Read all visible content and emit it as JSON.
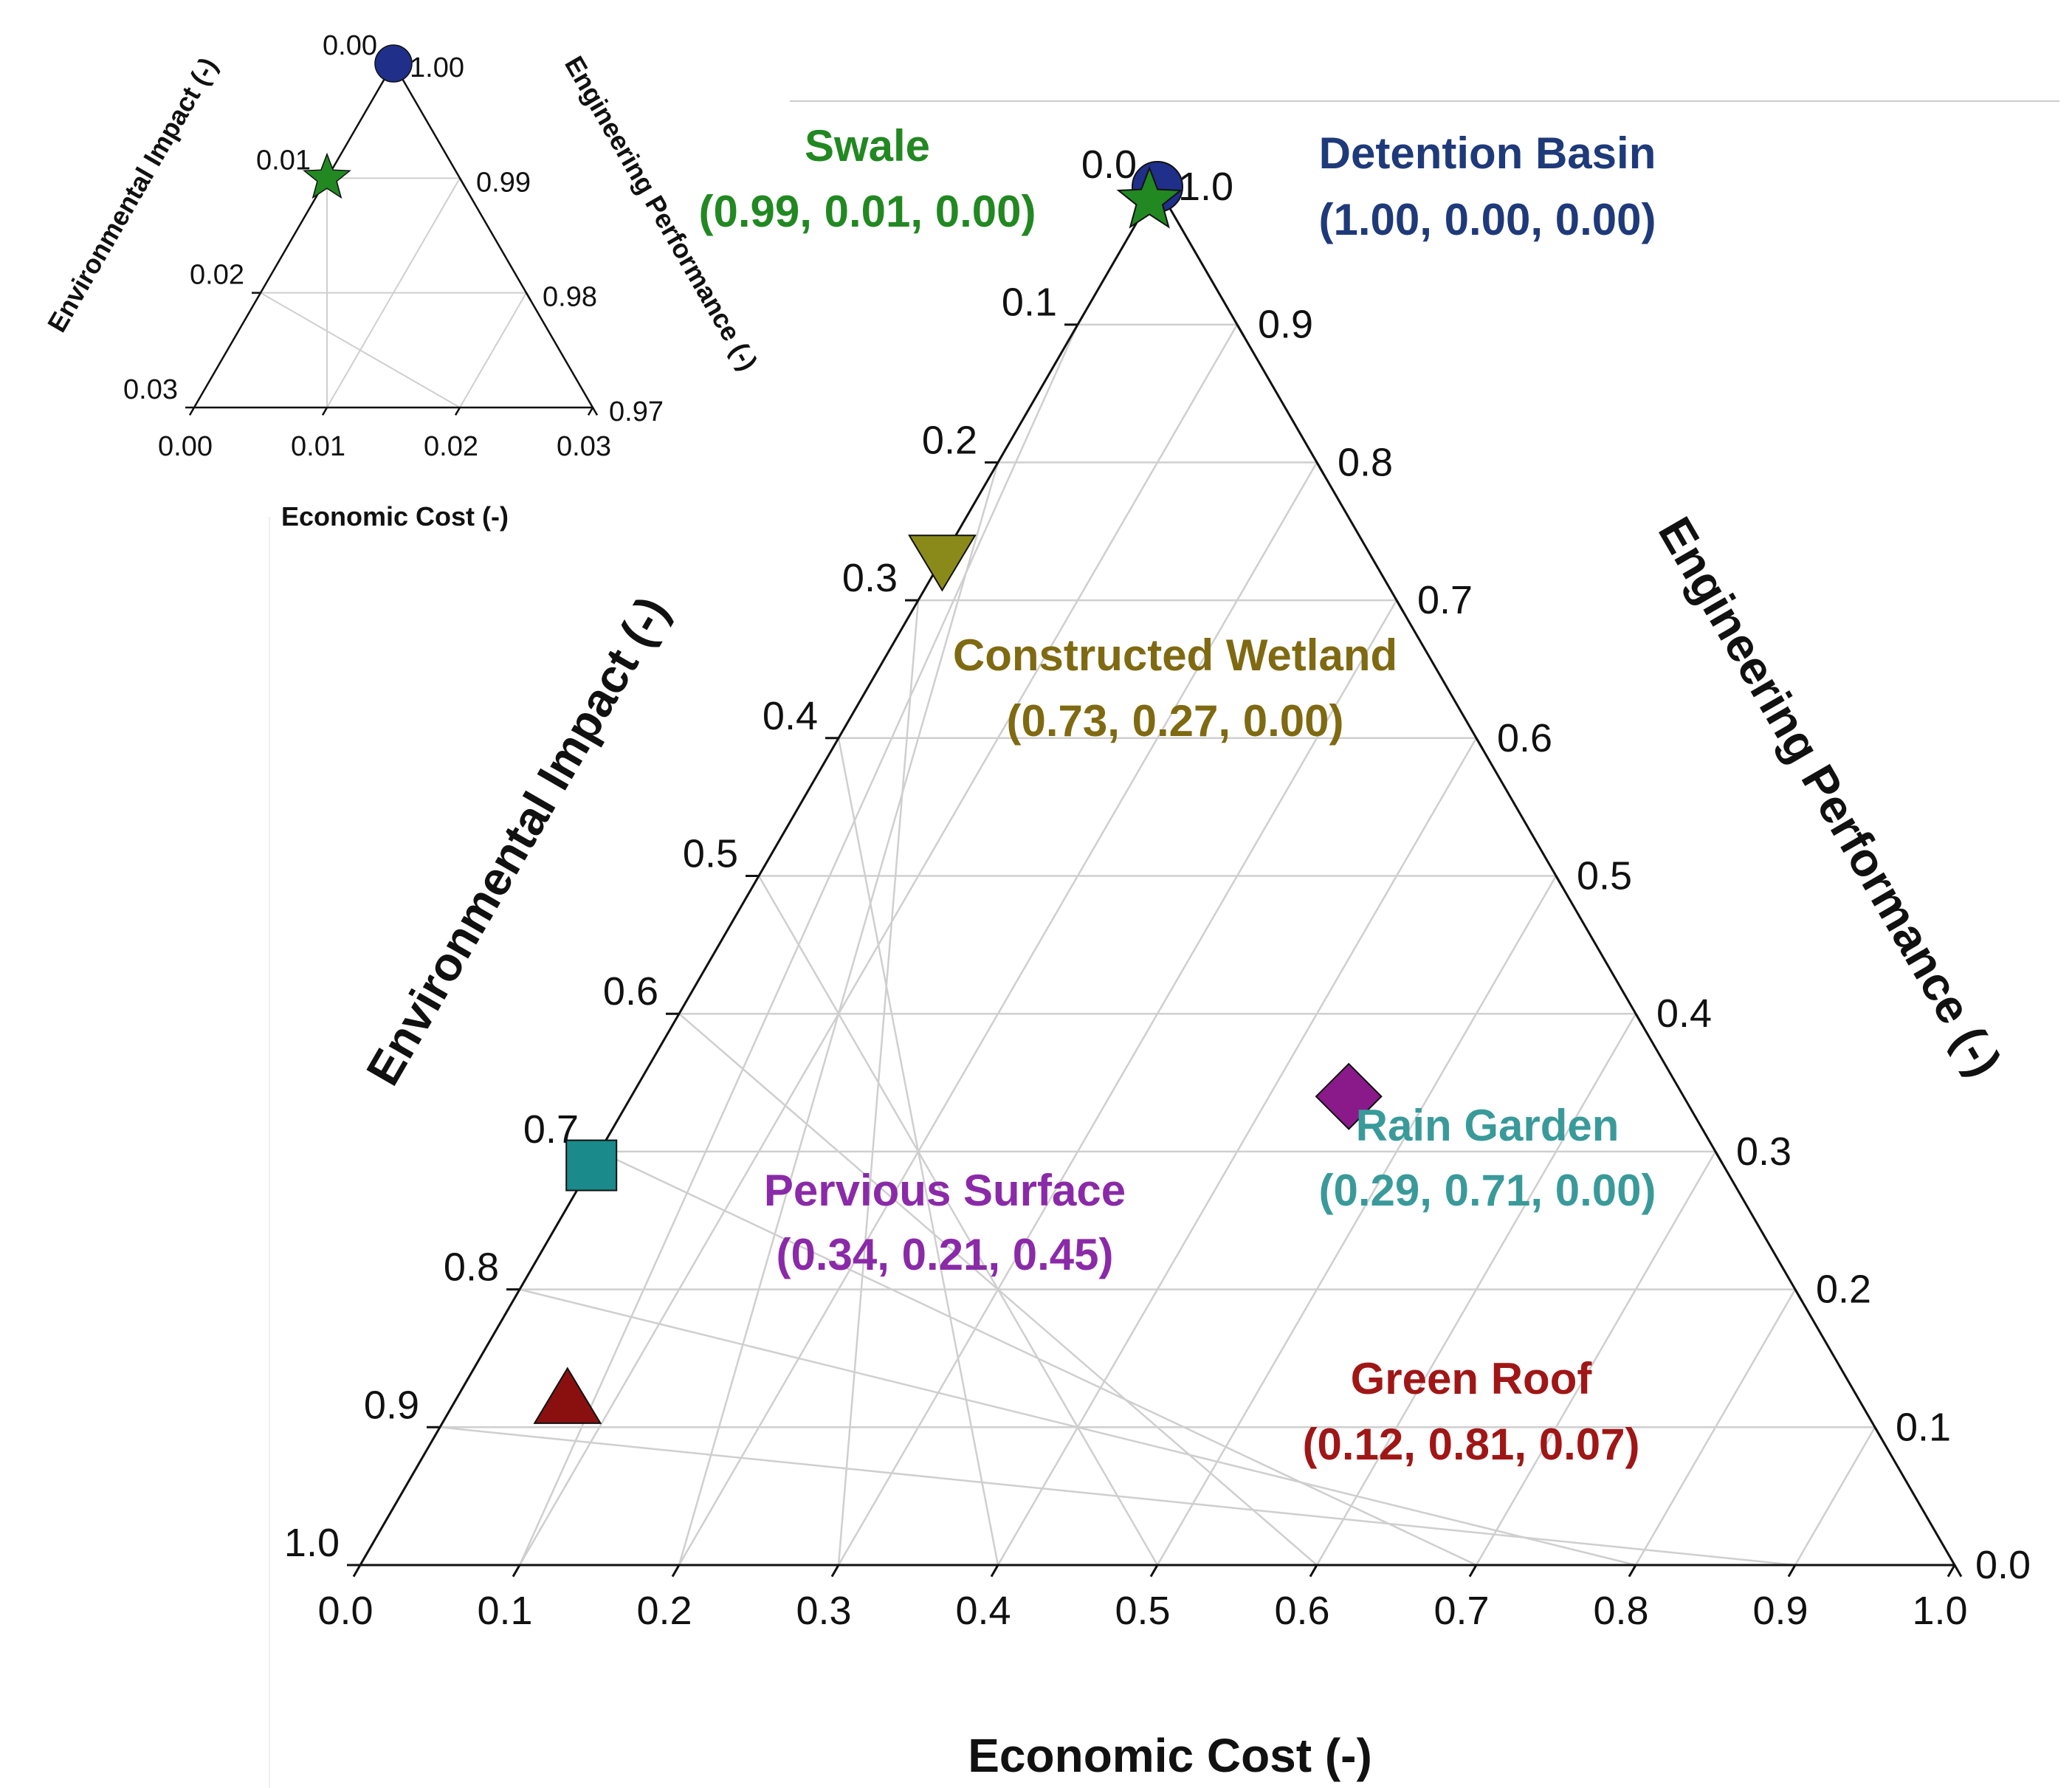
{
  "chart_data": [
    {
      "type": "ternary-scatter",
      "axes": {
        "bottom": {
          "label": "Economic Cost (-)",
          "range": [
            0.0,
            1.0
          ],
          "ticks": [
            "0.0",
            "0.1",
            "0.2",
            "0.3",
            "0.4",
            "0.5",
            "0.6",
            "0.7",
            "0.8",
            "0.9",
            "1.0"
          ]
        },
        "left": {
          "label": "Environmental Impact (-)",
          "range": [
            0.0,
            1.0
          ],
          "ticks": [
            "0.0",
            "0.1",
            "0.2",
            "0.3",
            "0.4",
            "0.5",
            "0.6",
            "0.7",
            "0.8",
            "0.9",
            "1.0"
          ]
        },
        "right": {
          "label": "Engineering Performance (-)",
          "range": [
            0.0,
            1.0
          ],
          "ticks": [
            "1.0",
            "0.9",
            "0.8",
            "0.7",
            "0.6",
            "0.5",
            "0.4",
            "0.3",
            "0.2",
            "0.1",
            "0.0"
          ]
        }
      },
      "grid": true,
      "points": [
        {
          "name": "Detention Basin",
          "label": "(1.00, 0.00, 0.00)",
          "performance": 1.0,
          "impact": 0.0,
          "cost": 0.0,
          "marker": "circle",
          "color": "#1f2f8a",
          "label_color": "#1f3a7a"
        },
        {
          "name": "Constructed Wetland",
          "label": "(0.73, 0.27, 0.00)",
          "performance": 0.73,
          "impact": 0.27,
          "cost": 0.0,
          "marker": "triangle-down",
          "color": "#8a8a1a",
          "label_color": "#7f6a12"
        },
        {
          "name": "Rain Garden",
          "label": "(0.29, 0.71, 0.00)",
          "performance": 0.29,
          "impact": 0.71,
          "cost": 0.0,
          "marker": "square",
          "color": "#1a8a8a",
          "label_color": "#3a9a9a"
        },
        {
          "name": "Green Roof",
          "label": "(0.12, 0.81, 0.07)",
          "performance": 0.12,
          "impact": 0.81,
          "cost": 0.07,
          "marker": "triangle-up",
          "color": "#8a1010",
          "label_color": "#a01616"
        },
        {
          "name": "Pervious Surface",
          "label": "(0.34, 0.21, 0.45)",
          "performance": 0.34,
          "impact": 0.21,
          "cost": 0.45,
          "marker": "diamond",
          "color": "#8a1a8a",
          "label_color": "#8a2aa8"
        },
        {
          "name": "Swale",
          "label": "(0.99, 0.01, 0.00)",
          "performance": 0.99,
          "impact": 0.01,
          "cost": 0.0,
          "marker": "star",
          "color": "#228822",
          "label_color": "#228822"
        }
      ]
    },
    {
      "type": "ternary-scatter-inset",
      "axes": {
        "bottom": {
          "label": "Economic Cost (-)",
          "range": [
            0.0,
            0.03
          ],
          "ticks": [
            "0.00",
            "0.01",
            "0.02",
            "0.03"
          ]
        },
        "left": {
          "label": "Environmental Impact (-)",
          "range": [
            0.0,
            0.03
          ],
          "ticks": [
            "0.00",
            "0.01",
            "0.02",
            "0.03"
          ]
        },
        "right": {
          "label": "Engineering Performance (-)",
          "range": [
            0.97,
            1.0
          ],
          "ticks": [
            "1.00",
            "0.99",
            "0.98",
            "0.97"
          ]
        }
      },
      "grid": true,
      "points": [
        {
          "name": "Detention Basin",
          "performance": 1.0,
          "impact": 0.0,
          "cost": 0.0,
          "marker": "circle",
          "color": "#1f2f8a"
        },
        {
          "name": "Swale",
          "performance": 0.99,
          "impact": 0.01,
          "cost": 0.0,
          "marker": "star",
          "color": "#228822"
        }
      ]
    }
  ]
}
